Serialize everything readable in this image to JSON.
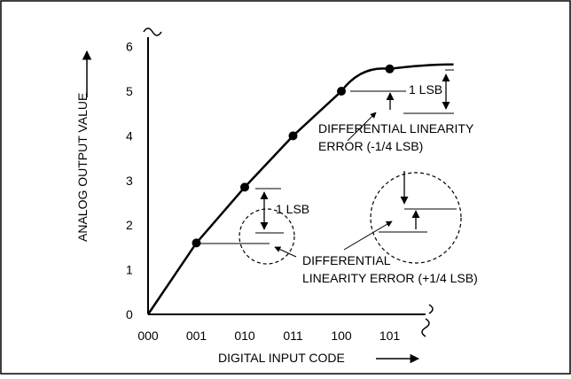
{
  "chart_data": {
    "type": "line",
    "xlabel": "DIGITAL INPUT CODE",
    "ylabel": "ANALOG OUTPUT VALUE",
    "categories": [
      "000",
      "001",
      "010",
      "011",
      "100",
      "101"
    ],
    "y_ticks": [
      "0",
      "1",
      "2",
      "3",
      "4",
      "5",
      "6"
    ],
    "ylim": [
      0,
      6
    ],
    "series": [
      {
        "points": [
          {
            "x": "000",
            "y": 0
          },
          {
            "x": "001",
            "y": 1.6
          },
          {
            "x": "010",
            "y": 2.85
          },
          {
            "x": "011",
            "y": 4.0
          },
          {
            "x": "100",
            "y": 5.0
          },
          {
            "x": "101",
            "y": 5.5
          }
        ]
      }
    ],
    "annotations": {
      "lsb_upper": "1 LSB",
      "lsb_lower": "1 LSB",
      "dle_negative_line1": "DIFFERENTIAL LINEARITY",
      "dle_negative_line2": "ERROR (-1/4 LSB)",
      "dle_positive_line1": "DIFFERENTIAL",
      "dle_positive_line2": "LINEARITY ERROR (+1/4 LSB)"
    }
  }
}
